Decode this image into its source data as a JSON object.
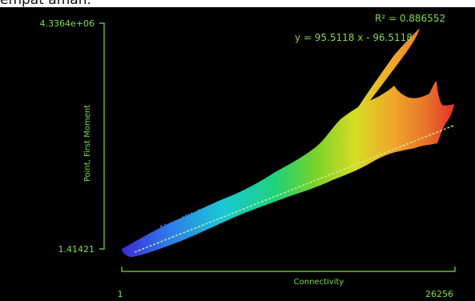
{
  "caption_fragment": "empat aman.",
  "chart_data": {
    "type": "scatter",
    "title": "",
    "xlabel": "Connectivity",
    "ylabel": "Point, First Moment",
    "xlim": [
      1,
      26256
    ],
    "ylim": [
      1.41421,
      4336400
    ],
    "x_tick_labels": [
      "1",
      "26256"
    ],
    "y_tick_labels": [
      "1.41421",
      "4.3364e+06"
    ],
    "regression": {
      "equation": "y = 95.5118 x - 96.5118",
      "r_squared_label": "R² = 0.886552",
      "slope": 95.5118,
      "intercept": -96.5118
    },
    "colormap": "rainbow (blue → red by connectivity)",
    "background": "#000000",
    "axis_color": "#7ddc4f",
    "fit_line_color": "#c8f0a0",
    "grid": false,
    "legend": "none"
  }
}
